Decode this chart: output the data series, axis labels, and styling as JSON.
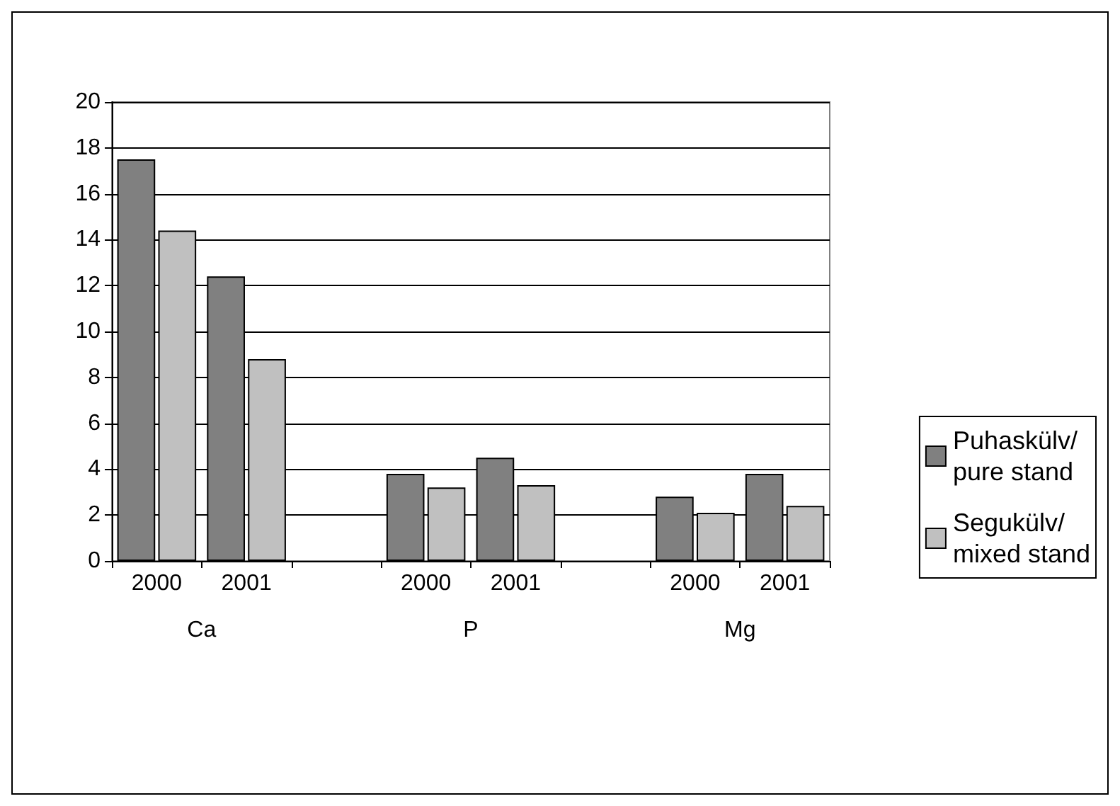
{
  "chart_data": {
    "type": "bar",
    "categories": [
      "2000",
      "2001",
      null,
      "2000",
      "2001",
      null,
      "2000",
      "2001"
    ],
    "series": [
      {
        "name": "Puhaskülv/ pure stand",
        "color": "#808080",
        "values": [
          17.5,
          12.4,
          null,
          3.8,
          4.5,
          null,
          2.8,
          3.8
        ]
      },
      {
        "name": "Segukülv/ mixed stand",
        "color": "#c0c0c0",
        "values": [
          14.4,
          8.8,
          null,
          3.2,
          3.3,
          null,
          2.1,
          2.4
        ]
      }
    ],
    "annotations": [
      "Ca",
      "P",
      "Mg"
    ],
    "ylim": [
      0,
      20
    ],
    "yticks": [
      0,
      2,
      4,
      6,
      8,
      10,
      12,
      14,
      16,
      18,
      20
    ],
    "grid": "y",
    "legend": "right"
  }
}
